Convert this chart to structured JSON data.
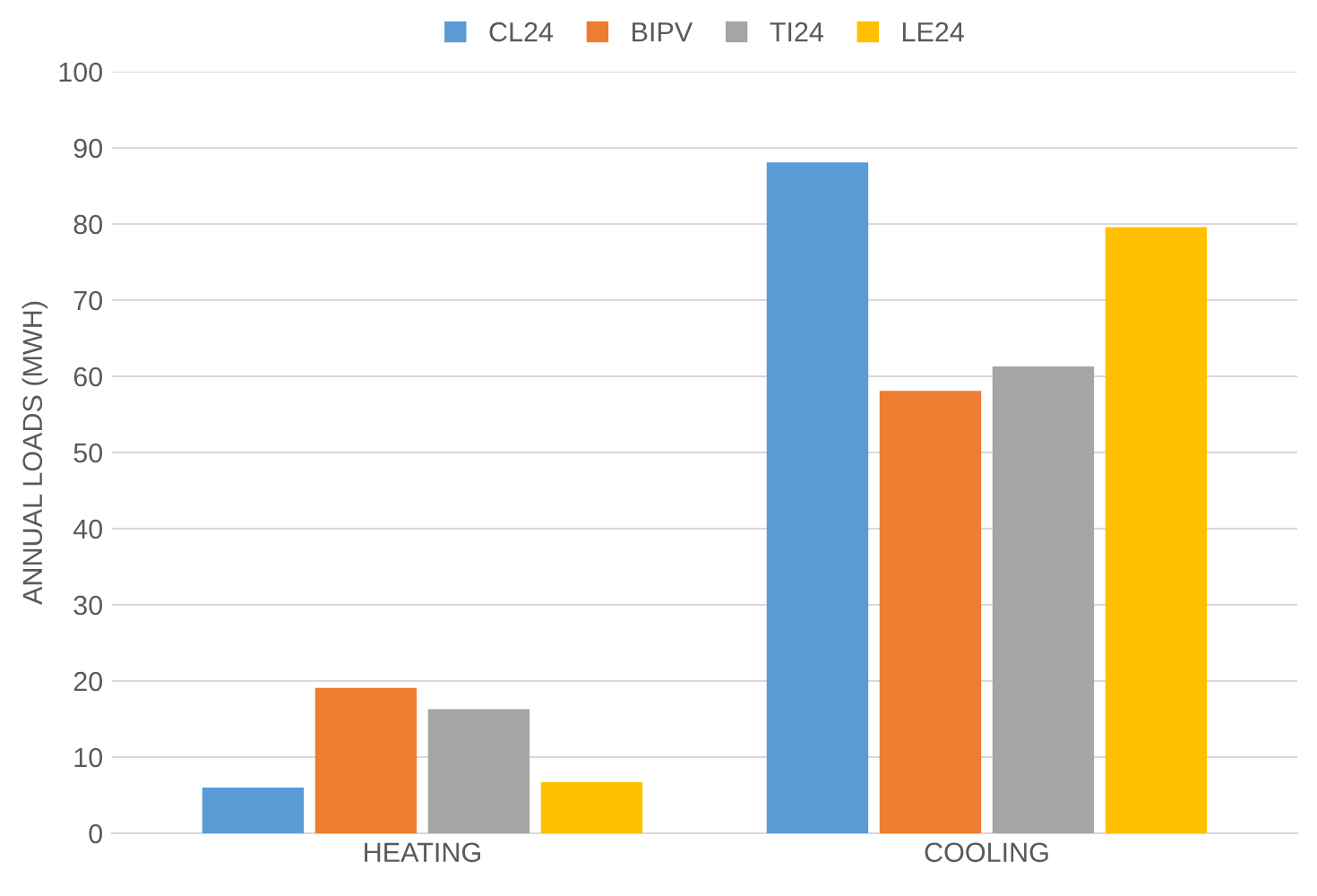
{
  "chart_data": {
    "type": "bar",
    "ylabel": "ANNUAL LOADS (MWH)",
    "categories": [
      "HEATING",
      "COOLING"
    ],
    "series": [
      {
        "name": "CL24",
        "color": "#5b9bd5",
        "values": [
          6.0,
          88.1
        ]
      },
      {
        "name": "BIPV",
        "color": "#ed7d31",
        "values": [
          19.1,
          58.1
        ]
      },
      {
        "name": "TI24",
        "color": "#a5a5a5",
        "values": [
          16.3,
          61.3
        ]
      },
      {
        "name": "LE24",
        "color": "#ffc000",
        "values": [
          6.7,
          79.6
        ]
      }
    ],
    "ylim": [
      0,
      100
    ],
    "yticks": [
      0,
      10,
      20,
      30,
      40,
      50,
      60,
      70,
      80,
      90,
      100
    ],
    "grid": "y",
    "legend": "top"
  }
}
